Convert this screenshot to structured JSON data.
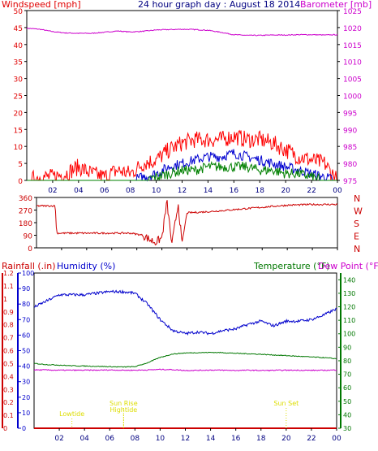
{
  "colors": {
    "wind": "#e00000",
    "gust": "#ff0000",
    "avg": "#0000d0",
    "avg2": "#008000",
    "baro": "#cc00cc",
    "dir": "#cc0000",
    "rain": "#cc0000",
    "humidity": "#0000cc",
    "temp": "#007700",
    "dew": "#cc00cc",
    "sun": "#dddd00",
    "title": "#000080",
    "tick": "#000080",
    "bg": "#ffffff",
    "frame": "#000000"
  },
  "chart_data": [
    {
      "type": "line",
      "title": "24 hour graph day : August 18 2014",
      "left_label": "Windspeed [mph]",
      "right_label": "Barometer [mb]",
      "x_ticks": [
        "02",
        "04",
        "06",
        "08",
        "10",
        "12",
        "14",
        "16",
        "18",
        "20",
        "22",
        "00"
      ],
      "y_left_ticks": [
        "0",
        "5",
        "10",
        "15",
        "20",
        "25",
        "30",
        "35",
        "40",
        "45",
        "50"
      ],
      "y_left_range": [
        0,
        50
      ],
      "y_right_ticks": [
        "975",
        "980",
        "985",
        "990",
        "995",
        "1000",
        "1005",
        "1010",
        "1015",
        "1020",
        "1025"
      ],
      "y_right_range": [
        975,
        1025
      ],
      "series": [
        {
          "key": "baro",
          "hours": [
            0,
            1,
            2,
            3,
            4,
            5,
            6,
            7,
            8,
            9,
            10,
            11,
            12,
            13,
            14,
            15,
            16,
            17,
            18,
            19,
            20,
            21,
            22,
            23,
            24
          ],
          "values": [
            1019.8,
            1019.5,
            1018.8,
            1018.4,
            1018.3,
            1018.3,
            1018.6,
            1019.0,
            1018.7,
            1018.9,
            1019.3,
            1019.4,
            1019.5,
            1019.4,
            1019.2,
            1018.6,
            1017.9,
            1017.7,
            1017.7,
            1017.8,
            1017.8,
            1017.9,
            1017.9,
            1017.8,
            1017.9
          ]
        },
        {
          "key": "gust",
          "hours": [
            0,
            1,
            2,
            3,
            4,
            5,
            6,
            7,
            8,
            9,
            10,
            11,
            12,
            13,
            14,
            15,
            16,
            17,
            18,
            19,
            20,
            21,
            22,
            23,
            24
          ],
          "values": [
            0,
            1,
            1,
            2,
            4,
            2,
            1,
            3,
            2,
            5,
            6,
            9,
            11,
            12,
            12,
            12,
            13,
            12,
            12,
            11,
            9,
            7,
            6,
            5,
            0
          ]
        },
        {
          "key": "avg",
          "hours": [
            0,
            1,
            2,
            3,
            4,
            5,
            6,
            7,
            8,
            9,
            10,
            11,
            12,
            13,
            14,
            15,
            16,
            17,
            18,
            19,
            20,
            21,
            22,
            23,
            24
          ],
          "values": [
            0,
            0,
            0,
            0,
            0,
            0,
            0,
            0,
            0,
            1,
            2,
            4,
            5,
            6,
            7,
            7,
            8,
            7,
            6,
            5,
            4,
            3,
            2,
            1,
            0
          ]
        },
        {
          "key": "avg2",
          "hours": [
            0,
            1,
            2,
            3,
            4,
            5,
            6,
            7,
            8,
            9,
            10,
            11,
            12,
            13,
            14,
            15,
            16,
            17,
            18,
            19,
            20,
            21,
            22,
            23,
            24
          ],
          "values": [
            0,
            0,
            0,
            0,
            0,
            0,
            0,
            0,
            0,
            0,
            1,
            2,
            3,
            3,
            4,
            4,
            4,
            4,
            3,
            3,
            2,
            2,
            1,
            0,
            0
          ]
        }
      ]
    },
    {
      "type": "line",
      "y_ticks": [
        "0",
        "90",
        "180",
        "270",
        "360"
      ],
      "y_range": [
        0,
        360
      ],
      "compass": [
        "N",
        "W",
        "S",
        "E",
        "N"
      ],
      "series": [
        {
          "key": "dir",
          "hours": [
            0,
            1.5,
            1.6,
            7.5,
            8.5,
            9.0,
            9.5,
            10.0,
            10.4,
            10.8,
            11.3,
            11.6,
            12,
            14,
            16,
            18,
            20,
            22,
            24
          ],
          "values": [
            300,
            300,
            105,
            105,
            90,
            60,
            40,
            70,
            330,
            20,
            320,
            30,
            250,
            260,
            275,
            290,
            305,
            310,
            310
          ]
        }
      ]
    },
    {
      "type": "line",
      "left_labels": [
        "Rainfall (.in)",
        "Humidity (%)"
      ],
      "right_labels": [
        "Temperature (°F)",
        "Dew Point (°F)"
      ],
      "rain_ticks": [
        "0",
        "0.1",
        "0.2",
        "0.3",
        "0.4",
        "0.5",
        "0.6",
        "0.7",
        "0.8",
        "0.9",
        "1",
        "1.1",
        "1.2"
      ],
      "humidity_ticks": [
        "0",
        "10",
        "20",
        "30",
        "40",
        "50",
        "60",
        "70",
        "80",
        "90",
        "100"
      ],
      "temp_ticks": [
        "30",
        "40",
        "50",
        "60",
        "70",
        "80",
        "90",
        "100",
        "110",
        "120",
        "130",
        "140"
      ],
      "rain_range": [
        0,
        1.2
      ],
      "humidity_range": [
        0,
        100
      ],
      "temp_range": [
        30,
        145
      ],
      "annotations": [
        {
          "label": "Lowtide",
          "hour": 3.0
        },
        {
          "label": "Sun Rise",
          "hour": 7.1
        },
        {
          "label": "Hightide",
          "hour": 7.1
        },
        {
          "label": "Sun Set",
          "hour": 20.0
        }
      ],
      "series": [
        {
          "key": "humidity",
          "hours": [
            0,
            1,
            2,
            3,
            4,
            5,
            6,
            7,
            8,
            9,
            10,
            11,
            12,
            13,
            14,
            15,
            16,
            17,
            18,
            19,
            20,
            21,
            22,
            23,
            24
          ],
          "values": [
            78,
            82,
            86,
            86,
            86,
            87,
            88,
            88,
            87,
            80,
            70,
            63,
            61,
            62,
            61,
            63,
            64,
            67,
            69,
            66,
            69,
            69,
            70,
            73,
            77
          ]
        },
        {
          "key": "temp",
          "hours": [
            0,
            1,
            2,
            3,
            4,
            5,
            6,
            7,
            8,
            9,
            10,
            11,
            12,
            13,
            14,
            15,
            16,
            17,
            18,
            19,
            20,
            21,
            22,
            23,
            24
          ],
          "values": [
            78.0,
            77.2,
            76.8,
            76.3,
            76.1,
            75.9,
            75.6,
            75.4,
            75.6,
            78.5,
            82.5,
            85.0,
            85.8,
            86.0,
            86.2,
            86.0,
            85.5,
            85.2,
            84.8,
            84.3,
            83.8,
            83.3,
            82.8,
            82.3,
            81.5
          ]
        },
        {
          "key": "dew",
          "hours": [
            0,
            1,
            2,
            3,
            4,
            5,
            6,
            7,
            8,
            9,
            10,
            11,
            12,
            13,
            14,
            15,
            16,
            17,
            18,
            19,
            20,
            21,
            22,
            23,
            24
          ],
          "values": [
            73.2,
            73.2,
            73.0,
            73.0,
            73.0,
            73.0,
            73.2,
            73.0,
            73.0,
            73.2,
            73.6,
            73.4,
            72.8,
            72.9,
            73.1,
            73.0,
            72.8,
            73.0,
            72.8,
            72.9,
            73.0,
            73.0,
            72.9,
            72.9,
            73.2
          ]
        },
        {
          "key": "rain",
          "hours": [
            0,
            24
          ],
          "values": [
            0,
            0
          ]
        }
      ]
    }
  ]
}
